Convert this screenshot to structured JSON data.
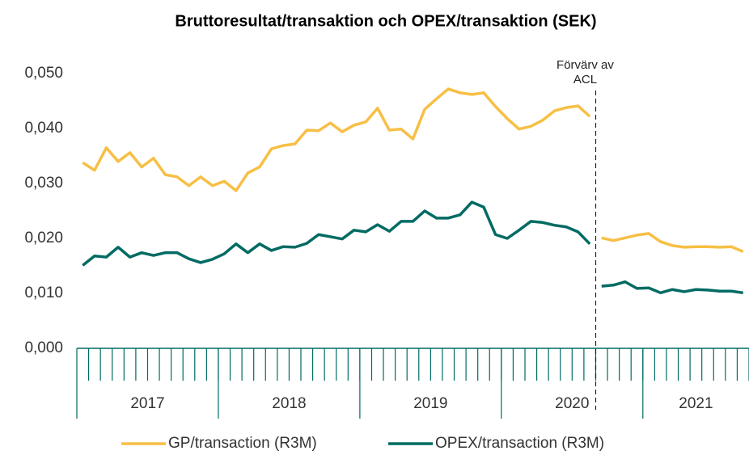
{
  "chart_data": {
    "type": "line",
    "title": "Bruttoresultat/transaktion och OPEX/transaktion (SEK)",
    "categories": [
      null,
      null,
      null,
      null,
      null,
      null,
      null,
      null,
      null,
      null,
      null,
      null,
      null,
      null,
      null,
      null,
      null,
      null,
      null,
      null,
      null,
      null,
      null,
      null,
      null,
      null,
      null,
      null,
      null,
      null,
      null,
      null,
      null,
      null,
      null,
      null,
      null,
      null,
      null,
      null,
      null,
      null,
      null,
      null,
      null,
      null,
      null,
      null,
      null,
      null,
      null,
      null,
      null,
      null,
      null,
      null,
      null
    ],
    "groups": [
      {
        "label": "2017",
        "count": 12
      },
      {
        "label": "2018",
        "count": 12
      },
      {
        "label": "2019",
        "count": 12
      },
      {
        "label": "2020",
        "count": 12
      },
      {
        "label": "2021",
        "count": 9
      }
    ],
    "series": [
      {
        "name": "GP/transaction (R3M)",
        "color": "#f7bf45",
        "values": [
          0.0338,
          0.0324,
          0.0365,
          0.034,
          0.0356,
          0.033,
          0.0346,
          0.0316,
          0.0312,
          0.0296,
          0.0312,
          0.0296,
          0.0304,
          0.0287,
          0.0319,
          0.033,
          0.0363,
          0.0369,
          0.0372,
          0.0397,
          0.0396,
          0.041,
          0.0394,
          0.0406,
          0.0412,
          0.0437,
          0.0397,
          0.0399,
          0.0381,
          0.0435,
          0.0454,
          0.0472,
          0.0465,
          0.0462,
          0.0465,
          0.044,
          0.0418,
          0.0399,
          0.0404,
          0.0415,
          0.0432,
          0.0438,
          0.0441,
          0.0422,
          0.0201,
          0.0196,
          0.0201,
          0.0206,
          0.0209,
          0.0194,
          0.0187,
          0.0184,
          0.0185,
          0.0185,
          0.0184,
          0.0185,
          0.0176
        ]
      },
      {
        "name": "OPEX/transaction (R3M)",
        "color": "#006b63",
        "values": [
          0.0151,
          0.0168,
          0.0166,
          0.0184,
          0.0166,
          0.0174,
          0.0169,
          0.0174,
          0.0174,
          0.0163,
          0.0156,
          0.0162,
          0.0172,
          0.019,
          0.0174,
          0.019,
          0.0178,
          0.0185,
          0.0184,
          0.0191,
          0.0207,
          0.0203,
          0.0199,
          0.0215,
          0.0212,
          0.0225,
          0.0213,
          0.0231,
          0.0231,
          0.025,
          0.0237,
          0.0237,
          0.0243,
          0.0266,
          0.0257,
          0.0207,
          0.02,
          0.0215,
          0.0231,
          0.0229,
          0.0224,
          0.0221,
          0.0212,
          0.019,
          0.0113,
          0.0115,
          0.0121,
          0.0109,
          0.011,
          0.0101,
          0.0107,
          0.0103,
          0.0107,
          0.0106,
          0.0104,
          0.0104,
          0.0101
        ]
      }
    ],
    "annotation": {
      "lines": [
        "Förvärv av",
        "ACL"
      ],
      "after": 43
    },
    "ylim": [
      0,
      0.05
    ],
    "yticks": [
      {
        "value": 0,
        "label": "0,000"
      },
      {
        "value": 0.01,
        "label": "0,010"
      },
      {
        "value": 0.02,
        "label": "0,020"
      },
      {
        "value": 0.03,
        "label": "0,030"
      },
      {
        "value": 0.04,
        "label": "0,040"
      },
      {
        "value": 0.05,
        "label": "0,050"
      }
    ],
    "axis_color": "#006b63",
    "legend": "bottom"
  }
}
